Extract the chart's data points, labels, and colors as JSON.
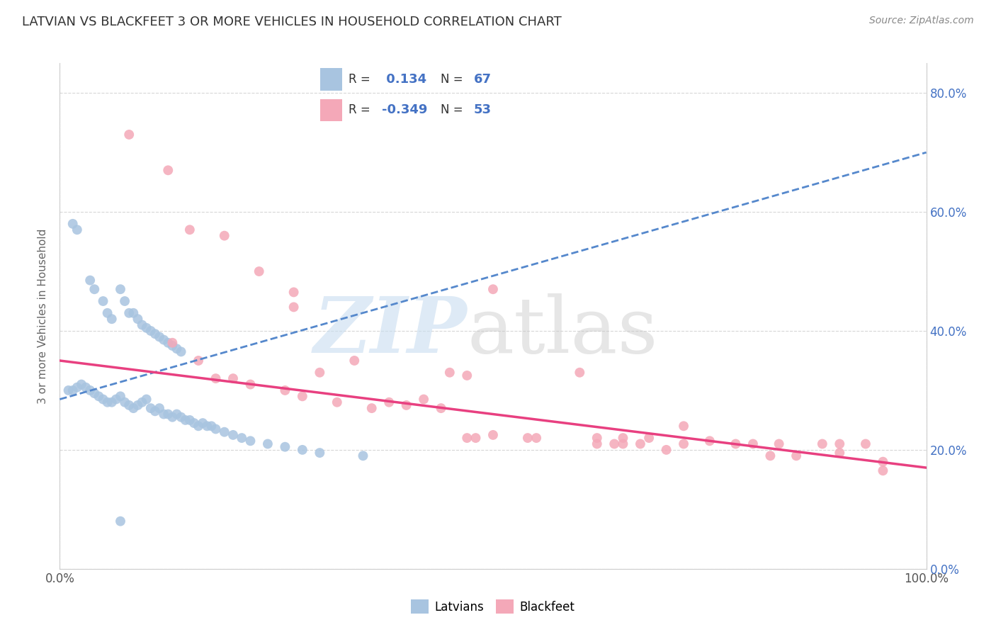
{
  "title": "LATVIAN VS BLACKFEET 3 OR MORE VEHICLES IN HOUSEHOLD CORRELATION CHART",
  "source": "Source: ZipAtlas.com",
  "ylabel": "3 or more Vehicles in Household",
  "latvian_R": 0.134,
  "latvian_N": 67,
  "blackfeet_R": -0.349,
  "blackfeet_N": 53,
  "latvian_color": "#a8c4e0",
  "blackfeet_color": "#f4a8b8",
  "latvian_line_color": "#5588cc",
  "blackfeet_line_color": "#e84080",
  "background_color": "#ffffff",
  "grid_color": "#cccccc",
  "latvian_x": [
    1.5,
    2.0,
    3.5,
    4.0,
    5.0,
    5.5,
    6.0,
    7.0,
    7.5,
    8.0,
    8.5,
    9.0,
    9.5,
    10.0,
    10.5,
    11.0,
    11.5,
    12.0,
    12.5,
    13.0,
    13.5,
    14.0,
    1.0,
    1.5,
    2.0,
    2.5,
    3.0,
    3.5,
    4.0,
    4.5,
    5.0,
    5.5,
    6.0,
    6.5,
    7.0,
    7.5,
    8.0,
    8.5,
    9.0,
    9.5,
    10.0,
    10.5,
    11.0,
    11.5,
    12.0,
    12.5,
    13.0,
    13.5,
    14.0,
    14.5,
    15.0,
    15.5,
    16.0,
    16.5,
    17.0,
    17.5,
    18.0,
    19.0,
    20.0,
    21.0,
    22.0,
    24.0,
    26.0,
    28.0,
    30.0,
    35.0,
    7.0
  ],
  "latvian_y": [
    58.0,
    57.0,
    48.5,
    47.0,
    45.0,
    43.0,
    42.0,
    47.0,
    45.0,
    43.0,
    43.0,
    42.0,
    41.0,
    40.5,
    40.0,
    39.5,
    39.0,
    38.5,
    38.0,
    37.5,
    37.0,
    36.5,
    30.0,
    30.0,
    30.5,
    31.0,
    30.5,
    30.0,
    29.5,
    29.0,
    28.5,
    28.0,
    28.0,
    28.5,
    29.0,
    28.0,
    27.5,
    27.0,
    27.5,
    28.0,
    28.5,
    27.0,
    26.5,
    27.0,
    26.0,
    26.0,
    25.5,
    26.0,
    25.5,
    25.0,
    25.0,
    24.5,
    24.0,
    24.5,
    24.0,
    24.0,
    23.5,
    23.0,
    22.5,
    22.0,
    21.5,
    21.0,
    20.5,
    20.0,
    19.5,
    19.0,
    8.0
  ],
  "blackfeet_x": [
    8.0,
    12.5,
    15.0,
    19.0,
    23.0,
    27.0,
    27.0,
    30.0,
    34.0,
    38.0,
    42.0,
    45.0,
    47.0,
    50.0,
    55.0,
    60.0,
    62.0,
    65.0,
    68.0,
    70.0,
    72.0,
    75.0,
    78.0,
    80.0,
    83.0,
    85.0,
    88.0,
    90.0,
    93.0,
    95.0,
    13.0,
    16.0,
    18.0,
    20.0,
    22.0,
    26.0,
    28.0,
    32.0,
    36.0,
    40.0,
    44.0,
    47.0,
    48.0,
    50.0,
    54.0,
    62.0,
    64.0,
    65.0,
    67.0,
    72.0,
    82.0,
    90.0,
    95.0
  ],
  "blackfeet_y": [
    73.0,
    67.0,
    57.0,
    56.0,
    50.0,
    46.5,
    44.0,
    33.0,
    35.0,
    28.0,
    28.5,
    33.0,
    32.5,
    47.0,
    22.0,
    33.0,
    22.0,
    22.0,
    22.0,
    20.0,
    24.0,
    21.5,
    21.0,
    21.0,
    21.0,
    19.0,
    21.0,
    21.0,
    21.0,
    18.0,
    38.0,
    35.0,
    32.0,
    32.0,
    31.0,
    30.0,
    29.0,
    28.0,
    27.0,
    27.5,
    27.0,
    22.0,
    22.0,
    22.5,
    22.0,
    21.0,
    21.0,
    21.0,
    21.0,
    21.0,
    19.0,
    19.5,
    16.5
  ],
  "xmin": 0.0,
  "xmax": 100.0,
  "ymin": 0.0,
  "ymax": 85.0,
  "ytick_vals": [
    0.0,
    20.0,
    40.0,
    60.0,
    80.0
  ],
  "yticklabels": [
    "0.0%",
    "20.0%",
    "40.0%",
    "60.0%",
    "80.0%"
  ],
  "xtick_left_label": "0.0%",
  "xtick_right_label": "100.0%",
  "latvian_line_x0": 0.0,
  "latvian_line_y0": 28.5,
  "latvian_line_x1": 100.0,
  "latvian_line_y1": 70.0,
  "blackfeet_line_x0": 0.0,
  "blackfeet_line_y0": 35.0,
  "blackfeet_line_x1": 100.0,
  "blackfeet_line_y1": 17.0
}
